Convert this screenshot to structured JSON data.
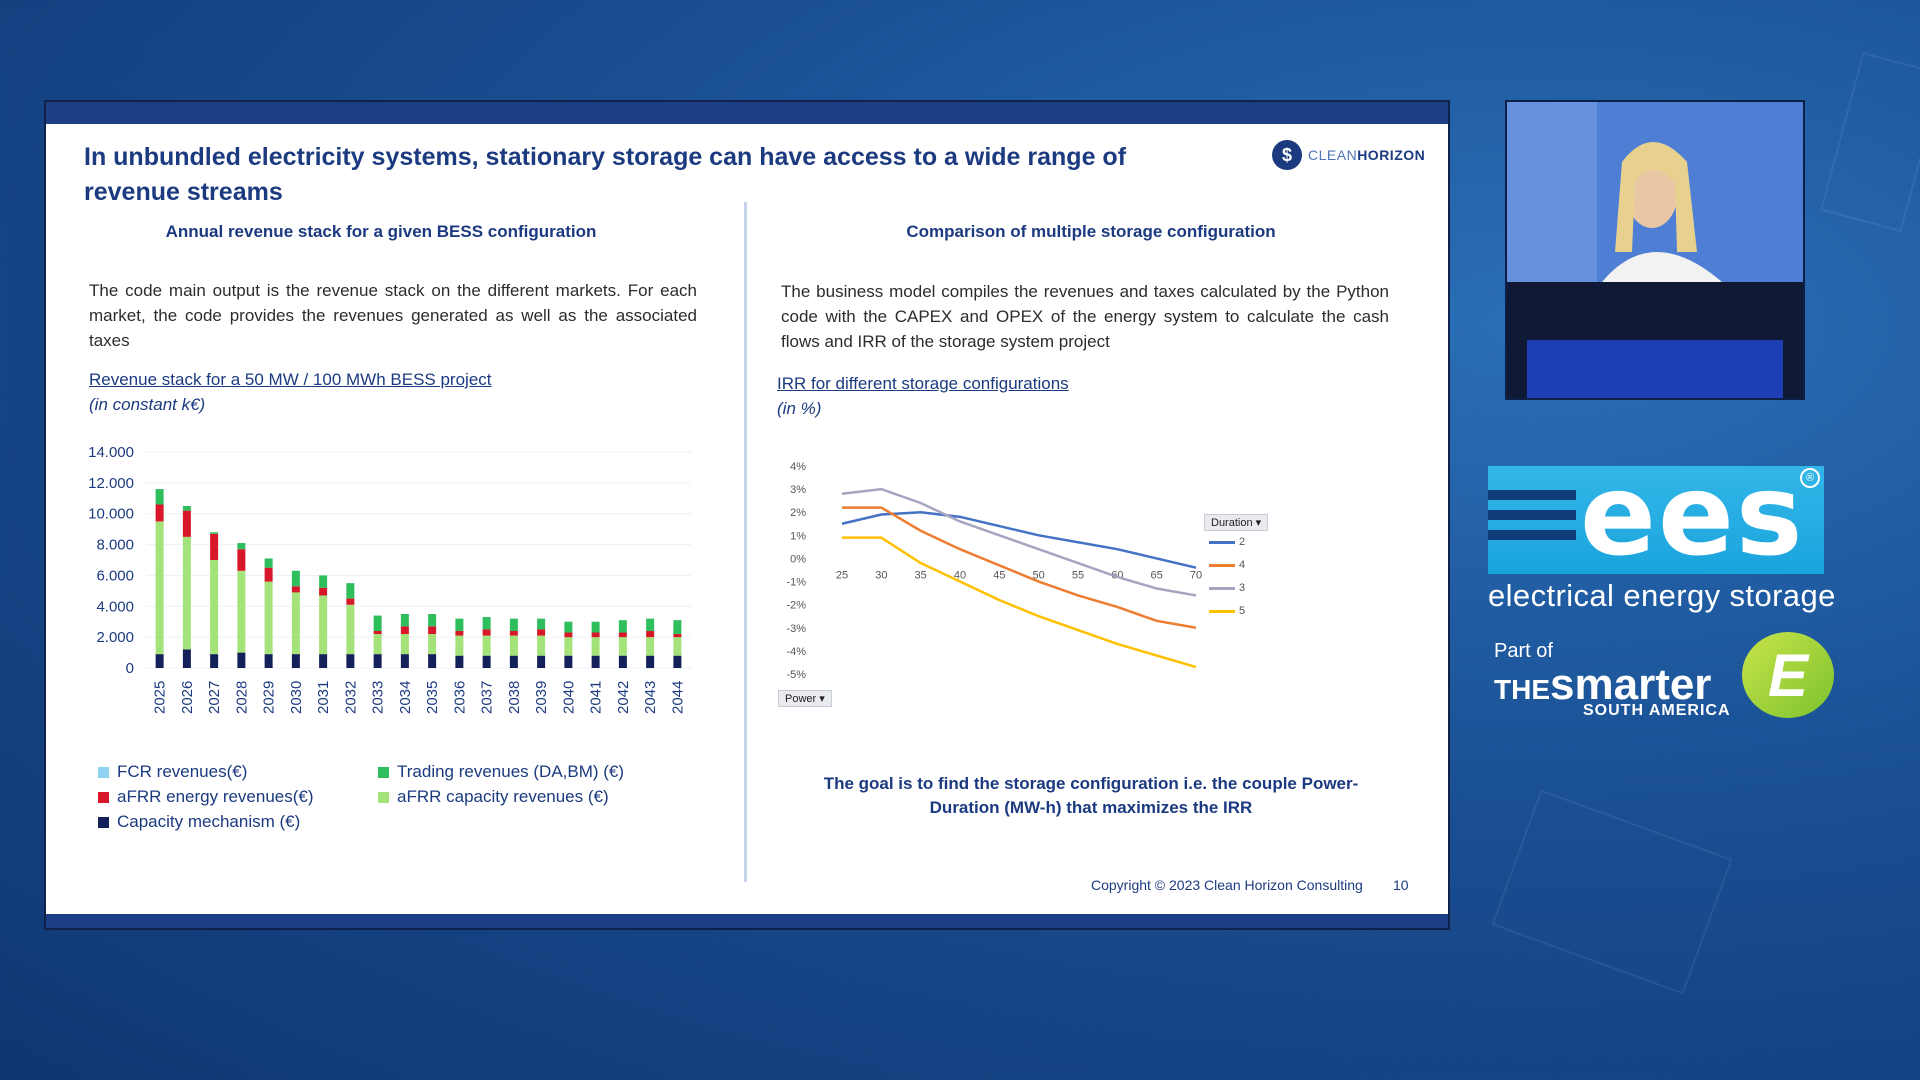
{
  "slide": {
    "title": "In unbundled electricity systems, stationary storage can have access to a wide range of revenue streams",
    "logo": {
      "part1": "CLEAN",
      "part2": "HORIZON"
    },
    "left": {
      "heading": "Annual revenue stack for a given BESS configuration",
      "text": "The code main output is the revenue stack on the different markets. For each market, the code provides the revenues generated as well as the associated taxes",
      "chart_title": "Revenue stack for a 50 MW / 100 MWh BESS project",
      "chart_subtitle": "(in constant k€)"
    },
    "right": {
      "heading": "Comparison of multiple storage configuration",
      "text": "The business model compiles the revenues and taxes calculated by the Python code with the CAPEX and OPEX of the energy system to calculate the cash flows and IRR of the storage system project",
      "chart_title": "IRR for different storage configurations",
      "chart_subtitle": "(in %)",
      "goal": "The goal is to find the storage configuration i.e. the couple Power-Duration (MW-h) that maximizes the IRR",
      "power_filter": "Power ▾",
      "duration_filter": "Duration ▾"
    },
    "copyright": "Copyright © 2023 Clean Horizon Consulting",
    "page_number": "10"
  },
  "branding": {
    "ees": "ees",
    "tagline": "electrical energy storage",
    "part_of": "Part of",
    "the": "THE",
    "smarter": "smarter",
    "region": "SOUTH AMERICA",
    "e_mark": "E",
    "registered": "®"
  },
  "colors": {
    "fcr": "#8fd3f0",
    "afrr_energy": "#d9172a",
    "capacity": "#14205a",
    "trading": "#2fbe5c",
    "afrr_capacity": "#a4e27a",
    "d2": "#4472c4",
    "d4": "#ed7d31",
    "d3": "#a5a5c0",
    "d5": "#ffc000"
  },
  "chart_data": [
    {
      "type": "bar",
      "stacked": true,
      "categories": [
        "2025",
        "2026",
        "2027",
        "2028",
        "2029",
        "2030",
        "2031",
        "2032",
        "2033",
        "2034",
        "2035",
        "2036",
        "2037",
        "2038",
        "2039",
        "2040",
        "2041",
        "2042",
        "2043",
        "2044"
      ],
      "series": [
        {
          "name": "Capacity mechanism (€)",
          "values": [
            900,
            1200,
            900,
            1000,
            900,
            900,
            900,
            900,
            900,
            900,
            900,
            800,
            800,
            800,
            800,
            800,
            800,
            800,
            800,
            800
          ]
        },
        {
          "name": "aFRR capacity revenues (€)",
          "values": [
            8600,
            7300,
            6100,
            5300,
            4700,
            4000,
            3800,
            3200,
            1300,
            1300,
            1300,
            1300,
            1300,
            1300,
            1300,
            1200,
            1200,
            1200,
            1200,
            1200
          ]
        },
        {
          "name": "aFRR energy revenues(€)",
          "values": [
            1100,
            1700,
            1700,
            1400,
            900,
            400,
            500,
            400,
            200,
            500,
            500,
            300,
            400,
            300,
            400,
            300,
            300,
            300,
            400,
            200
          ]
        },
        {
          "name": "Trading revenues (DA,BM) (€)",
          "values": [
            1000,
            300,
            100,
            400,
            600,
            1000,
            800,
            1000,
            1000,
            800,
            800,
            800,
            800,
            800,
            700,
            700,
            700,
            800,
            800,
            900
          ]
        },
        {
          "name": "FCR revenues(€)",
          "values": [
            0,
            0,
            0,
            0,
            0,
            0,
            0,
            0,
            0,
            0,
            0,
            0,
            0,
            0,
            0,
            0,
            0,
            0,
            0,
            0
          ]
        }
      ],
      "yticks": [
        "14.000",
        "12.000",
        "10.000",
        "8.000",
        "6.000",
        "4.000",
        "2.000",
        "0"
      ],
      "ylim": [
        0,
        14000
      ]
    },
    {
      "type": "line",
      "x": [
        25,
        30,
        35,
        40,
        45,
        50,
        55,
        60,
        65,
        70
      ],
      "yticks": [
        "4%",
        "3%",
        "2%",
        "1%",
        "0%",
        "-1%",
        "-2%",
        "-3%",
        "-4%",
        "-5%"
      ],
      "ylim": [
        -5,
        4
      ],
      "legend_title": "Duration",
      "series": [
        {
          "name": "2",
          "values": [
            1.5,
            1.9,
            2.0,
            1.8,
            1.4,
            1.0,
            0.7,
            0.4,
            0.0,
            -0.4
          ]
        },
        {
          "name": "4",
          "values": [
            2.2,
            2.2,
            1.2,
            0.4,
            -0.3,
            -1.0,
            -1.6,
            -2.1,
            -2.7,
            -3.0
          ]
        },
        {
          "name": "3",
          "values": [
            2.8,
            3.0,
            2.4,
            1.6,
            1.0,
            0.4,
            -0.2,
            -0.8,
            -1.3,
            -1.6
          ]
        },
        {
          "name": "5",
          "values": [
            0.9,
            0.9,
            -0.2,
            -1.0,
            -1.8,
            -2.5,
            -3.1,
            -3.7,
            -4.2,
            -4.7
          ]
        }
      ]
    }
  ]
}
